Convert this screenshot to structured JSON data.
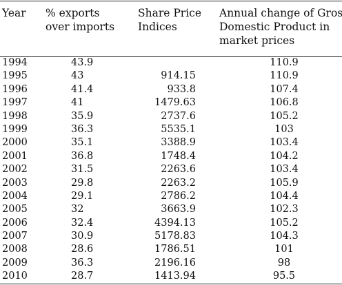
{
  "headers": {
    "year": "Year",
    "exports": [
      "% exports",
      "over imports"
    ],
    "share": [
      "Share Price",
      "Indices"
    ],
    "gdp": [
      "Annual change of Gross",
      "Domestic Product in",
      "market prices"
    ]
  },
  "rows": [
    {
      "year": "1994",
      "exports": "43.9",
      "share": "",
      "gdp": "110.9"
    },
    {
      "year": "1995",
      "exports": "43",
      "share": "914.15",
      "gdp": "110.9"
    },
    {
      "year": "1996",
      "exports": "41.4",
      "share": "933.8",
      "gdp": "107.4"
    },
    {
      "year": "1997",
      "exports": "41",
      "share": "1479.63",
      "gdp": "106.8"
    },
    {
      "year": "1998",
      "exports": "35.9",
      "share": "2737.6",
      "gdp": "105.2"
    },
    {
      "year": "1999",
      "exports": "36.3",
      "share": "5535.1",
      "gdp": "103"
    },
    {
      "year": "2000",
      "exports": "35.1",
      "share": "3388.9",
      "gdp": "103.4"
    },
    {
      "year": "2001",
      "exports": "36.8",
      "share": "1748.4",
      "gdp": "104.2"
    },
    {
      "year": "2002",
      "exports": "31.5",
      "share": "2263.6",
      "gdp": "103.4"
    },
    {
      "year": "2003",
      "exports": "29.8",
      "share": "2263.2",
      "gdp": "105.9"
    },
    {
      "year": "2004",
      "exports": "29.1",
      "share": "2786.2",
      "gdp": "104.4"
    },
    {
      "year": "2005",
      "exports": "32",
      "share": "3663.9",
      "gdp": "102.3"
    },
    {
      "year": "2006",
      "exports": "32.4",
      "share": "4394.13",
      "gdp": "105.2"
    },
    {
      "year": "2007",
      "exports": "30.9",
      "share": "5178.83",
      "gdp": "104.3"
    },
    {
      "year": "2008",
      "exports": "28.6",
      "share": "1786.51",
      "gdp": "101"
    },
    {
      "year": "2009",
      "exports": "36.3",
      "share": "2196.16",
      "gdp": "98"
    },
    {
      "year": "2010",
      "exports": "28.7",
      "share": "1413.94",
      "gdp": "95.5"
    }
  ]
}
